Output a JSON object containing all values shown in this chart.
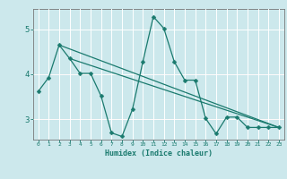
{
  "xlabel": "Humidex (Indice chaleur)",
  "background_color": "#cce8ec",
  "grid_color": "#ffffff",
  "line_color": "#1a7a6e",
  "red_line_color": "#c87878",
  "xlim": [
    -0.5,
    23.5
  ],
  "ylim": [
    2.55,
    5.45
  ],
  "xticks": [
    0,
    1,
    2,
    3,
    4,
    5,
    6,
    7,
    8,
    9,
    10,
    11,
    12,
    13,
    14,
    15,
    16,
    17,
    18,
    19,
    20,
    21,
    22,
    23
  ],
  "yticks": [
    3,
    4,
    5
  ],
  "curve1_x": [
    0,
    1,
    2,
    3,
    4,
    5,
    6,
    7,
    8,
    9,
    10,
    11,
    12,
    13,
    14,
    15,
    16,
    17,
    18,
    19,
    20,
    21,
    22,
    23
  ],
  "curve1_y": [
    3.62,
    3.93,
    4.65,
    4.35,
    4.02,
    4.02,
    3.52,
    2.7,
    2.62,
    3.22,
    4.28,
    5.28,
    5.02,
    4.28,
    3.87,
    3.87,
    3.02,
    2.68,
    3.05,
    3.05,
    2.82,
    2.82,
    2.82,
    2.82
  ],
  "curve2_x": [
    2,
    23
  ],
  "curve2_y": [
    4.65,
    2.82
  ],
  "curve3_x": [
    3,
    23
  ],
  "curve3_y": [
    4.35,
    2.82
  ],
  "marker_size": 2.5
}
